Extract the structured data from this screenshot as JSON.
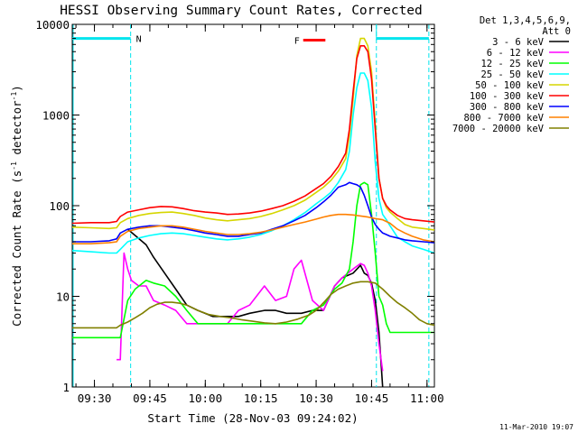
{
  "chart_data": {
    "type": "line",
    "title": "HESSI Observing Summary Count Rates, Corrected",
    "xlabel": "Start Time (28-Nov-03 09:24:02)",
    "ylabel": "Corrected Count Rate (s",
    "ylabel_sup": "-1",
    "ylabel_tail": " detector",
    "ylabel_sup2": "-1",
    "ylabel_close": ")",
    "x_scale": "time (minutes after 09:24:02)",
    "x_range": [
      0,
      98
    ],
    "y_scale": "log",
    "y_range": [
      1,
      10000
    ],
    "x_ticks": [
      {
        "label": "09:30",
        "x": 6
      },
      {
        "label": "09:45",
        "x": 21
      },
      {
        "label": "10:00",
        "x": 36
      },
      {
        "label": "10:15",
        "x": 51
      },
      {
        "label": "10:30",
        "x": 66
      },
      {
        "label": "10:45",
        "x": 81
      },
      {
        "label": "11:00",
        "x": 96
      }
    ],
    "y_ticks": [
      {
        "label": "1",
        "y": 1
      },
      {
        "label": "10",
        "y": 10
      },
      {
        "label": "100",
        "y": 100
      },
      {
        "label": "1000",
        "y": 1000
      },
      {
        "label": "10000",
        "y": 10000
      }
    ],
    "legend": {
      "placement": "right",
      "header": [
        "Det 1,3,4,5,6,9,",
        "Att 0"
      ]
    },
    "series": [
      {
        "name": "3 - 6 keV",
        "color": "#000000",
        "x": [
          0,
          13,
          15,
          17,
          20,
          22,
          25,
          28,
          31,
          34,
          38,
          42,
          45,
          48,
          52,
          55,
          58,
          62,
          65,
          68,
          71,
          73,
          76,
          78,
          79,
          80,
          81,
          82,
          83,
          83.5,
          84,
          85,
          86,
          87,
          88,
          92,
          95,
          98
        ],
        "y": [
          null,
          null,
          55,
          47,
          37,
          27,
          18,
          12,
          8,
          7,
          6,
          6,
          6,
          6.5,
          7,
          7,
          6.5,
          6.5,
          7,
          7,
          13,
          16,
          18,
          22,
          18,
          17,
          14,
          9,
          4,
          2,
          1,
          null,
          null,
          null,
          null,
          null,
          null,
          null
        ]
      },
      {
        "name": "6 - 12 keV",
        "color": "#ff00ff",
        "x": [
          0,
          9,
          10,
          11,
          12,
          13,
          14,
          15,
          16,
          18,
          20,
          22,
          25,
          28,
          31,
          34,
          38,
          42,
          45,
          48,
          52,
          55,
          58,
          60,
          62,
          65,
          68,
          71,
          73,
          76,
          78,
          79,
          80,
          81,
          82,
          83,
          84,
          85,
          86,
          87,
          88,
          92,
          95,
          98
        ],
        "y": [
          null,
          null,
          null,
          null,
          2,
          2,
          30,
          20,
          15,
          13,
          13,
          9,
          8,
          7,
          5,
          5,
          5,
          5,
          7,
          8,
          13,
          9,
          10,
          20,
          25,
          9,
          7,
          13,
          16,
          20,
          23,
          22,
          18,
          13,
          7,
          3,
          1.5,
          null,
          null,
          null,
          null,
          null,
          null,
          null
        ]
      },
      {
        "name": "12 - 25 keV",
        "color": "#00ff00",
        "x": [
          0,
          5,
          10,
          13,
          15,
          17,
          20,
          22,
          25,
          28,
          31,
          34,
          38,
          42,
          45,
          48,
          52,
          55,
          58,
          62,
          65,
          68,
          71,
          73,
          75,
          76,
          77,
          78,
          79,
          80,
          81,
          82,
          83,
          84,
          85,
          86,
          87,
          88,
          90,
          92,
          95,
          98
        ],
        "y": [
          3.5,
          3.5,
          3.5,
          3.5,
          9,
          12,
          15,
          14,
          13,
          10,
          7,
          5,
          5,
          5,
          5,
          5,
          5,
          5,
          5,
          5,
          7,
          8,
          12,
          14,
          20,
          40,
          100,
          170,
          180,
          170,
          80,
          30,
          10,
          8,
          5,
          4,
          4,
          4,
          4,
          4,
          4,
          4
        ]
      },
      {
        "name": "25 - 50 keV",
        "color": "#00ffff",
        "x": [
          0,
          5,
          10,
          12,
          13,
          15,
          18,
          21,
          24,
          27,
          30,
          33,
          36,
          39,
          42,
          45,
          48,
          51,
          54,
          57,
          60,
          63,
          66,
          68,
          70,
          72,
          74,
          75,
          76,
          77,
          78,
          79,
          80,
          81,
          82,
          83,
          84,
          85,
          86,
          88,
          90,
          92,
          95,
          98
        ],
        "y": [
          32,
          31,
          30,
          30,
          33,
          40,
          44,
          47,
          49,
          50,
          49,
          47,
          45,
          43,
          42,
          43,
          45,
          48,
          53,
          60,
          70,
          84,
          105,
          120,
          140,
          180,
          250,
          400,
          1000,
          2000,
          2900,
          2900,
          2400,
          1200,
          300,
          120,
          80,
          70,
          60,
          45,
          40,
          36,
          33,
          30
        ]
      },
      {
        "name": "50 - 100 keV",
        "color": "#d6d600",
        "x": [
          0,
          5,
          10,
          12,
          13,
          15,
          18,
          21,
          24,
          27,
          30,
          33,
          36,
          39,
          42,
          45,
          48,
          51,
          54,
          57,
          60,
          63,
          66,
          68,
          70,
          72,
          74,
          75,
          76,
          77,
          78,
          79,
          80,
          81,
          82,
          83,
          84,
          85,
          86,
          88,
          90,
          92,
          95,
          98
        ],
        "y": [
          58,
          57,
          56,
          57,
          65,
          72,
          78,
          82,
          84,
          85,
          82,
          78,
          73,
          70,
          68,
          70,
          72,
          76,
          82,
          90,
          100,
          115,
          140,
          160,
          190,
          240,
          330,
          600,
          1500,
          4500,
          7000,
          7000,
          5800,
          3000,
          800,
          200,
          120,
          95,
          85,
          72,
          62,
          58,
          56,
          54
        ]
      },
      {
        "name": "100 - 300 keV",
        "color": "#ff0000",
        "x": [
          0,
          5,
          10,
          12,
          13,
          15,
          18,
          21,
          24,
          27,
          30,
          33,
          36,
          39,
          42,
          45,
          48,
          51,
          54,
          57,
          60,
          63,
          66,
          68,
          70,
          72,
          74,
          75,
          76,
          77,
          78,
          79,
          80,
          81,
          82,
          83,
          84,
          85,
          86,
          88,
          90,
          92,
          95,
          98
        ],
        "y": [
          64,
          65,
          65,
          67,
          76,
          85,
          90,
          95,
          98,
          97,
          93,
          88,
          85,
          83,
          80,
          81,
          83,
          87,
          93,
          100,
          112,
          128,
          155,
          175,
          210,
          270,
          380,
          700,
          1800,
          4200,
          5800,
          5800,
          5000,
          2500,
          700,
          200,
          120,
          100,
          90,
          78,
          72,
          70,
          68,
          66
        ]
      },
      {
        "name": "300 - 800 keV",
        "color": "#0000ff",
        "x": [
          0,
          5,
          10,
          12,
          13,
          15,
          18,
          21,
          24,
          27,
          30,
          33,
          36,
          39,
          42,
          45,
          48,
          51,
          54,
          57,
          60,
          63,
          66,
          68,
          70,
          72,
          74,
          75,
          76,
          77,
          78,
          79,
          80,
          81,
          82,
          83,
          84,
          85,
          86,
          88,
          90,
          92,
          95,
          98
        ],
        "y": [
          40,
          40,
          41,
          43,
          50,
          55,
          58,
          60,
          60,
          58,
          56,
          53,
          50,
          48,
          46,
          46,
          48,
          50,
          55,
          60,
          68,
          78,
          95,
          110,
          130,
          160,
          170,
          180,
          175,
          170,
          160,
          130,
          100,
          75,
          62,
          55,
          50,
          48,
          46,
          44,
          42,
          41,
          40,
          39
        ]
      },
      {
        "name": "800 - 7000 keV",
        "color": "#ff8000",
        "x": [
          0,
          5,
          10,
          12,
          13,
          15,
          18,
          21,
          24,
          27,
          30,
          33,
          36,
          39,
          42,
          45,
          48,
          51,
          54,
          57,
          60,
          63,
          66,
          68,
          70,
          72,
          74,
          76,
          78,
          80,
          82,
          84,
          86,
          88,
          90,
          92,
          95,
          98
        ],
        "y": [
          38,
          38,
          39,
          40,
          46,
          52,
          56,
          58,
          60,
          60,
          58,
          55,
          52,
          50,
          48,
          48,
          49,
          51,
          54,
          58,
          62,
          66,
          71,
          75,
          78,
          80,
          80,
          79,
          77,
          75,
          72,
          70,
          64,
          55,
          50,
          46,
          42,
          40
        ]
      },
      {
        "name": "7000 - 20000 keV",
        "color": "#808000",
        "x": [
          0,
          5,
          10,
          12,
          13,
          15,
          17,
          19,
          21,
          23,
          25,
          27,
          29,
          31,
          34,
          37,
          40,
          43,
          46,
          49,
          52,
          55,
          58,
          61,
          64,
          66,
          68,
          70,
          72,
          74,
          76,
          78,
          80,
          82,
          84,
          86,
          88,
          90,
          92,
          94,
          96,
          98
        ],
        "y": [
          4.5,
          4.5,
          4.5,
          4.5,
          4.8,
          5.2,
          5.8,
          6.5,
          7.5,
          8.2,
          8.6,
          8.6,
          8.4,
          8,
          7,
          6.3,
          6,
          5.8,
          5.5,
          5.3,
          5.1,
          5,
          5.2,
          5.6,
          6.2,
          7,
          8.5,
          10.5,
          12,
          13,
          14,
          14.5,
          14.5,
          14,
          12,
          10,
          8.5,
          7.5,
          6.5,
          5.5,
          5,
          4.8
        ]
      }
    ],
    "annotations": [
      {
        "label": "N",
        "color": "#00e5ee",
        "kind": "night-bar",
        "segments": [
          [
            0,
            15.8
          ],
          [
            82.3,
            96.5
          ]
        ],
        "level": 7000
      },
      {
        "label": "F",
        "color": "#ff0000",
        "kind": "flare-flag",
        "segment": [
          62.5,
          68.5
        ],
        "level": 6700
      }
    ],
    "footer_date": "11-Mar-2010 19:07"
  }
}
